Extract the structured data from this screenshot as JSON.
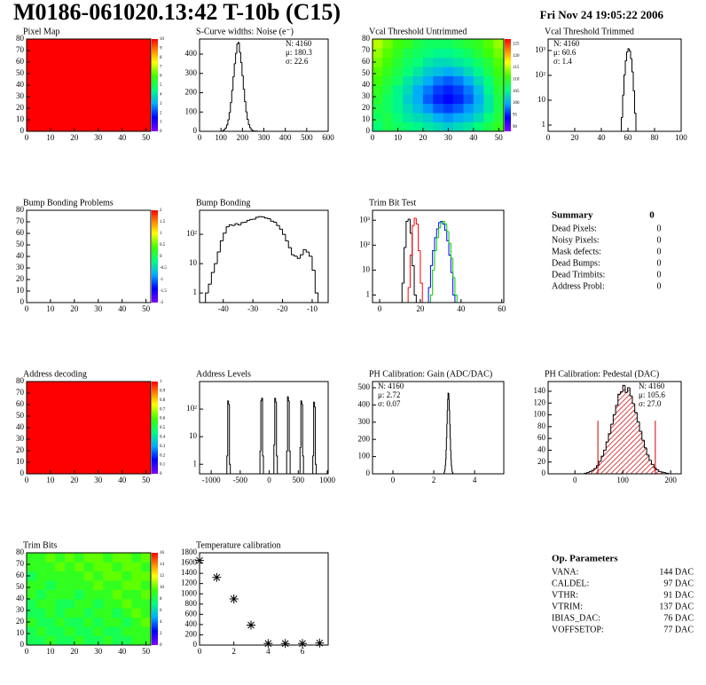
{
  "header": {
    "title": "M0186-061020.13:42 T-10b (C15)",
    "date": "Fri Nov 24 19:05:22 2006"
  },
  "chart_data": [
    {
      "type": "heatmap",
      "title": "Pixel Map",
      "xlim": [
        0,
        52
      ],
      "ylim": [
        0,
        80
      ],
      "xticks": [
        0,
        10,
        20,
        30,
        40,
        50
      ],
      "yticks": [
        0,
        10,
        20,
        30,
        40,
        50,
        60,
        70,
        80
      ],
      "xbins": [
        0,
        52
      ],
      "ybins": [
        0,
        80
      ],
      "z": [
        [
          10
        ]
      ],
      "zlim": [
        0,
        10
      ],
      "zticks": [
        0,
        1,
        2,
        3,
        4,
        5,
        6,
        7,
        8,
        9,
        10
      ]
    },
    {
      "type": "histogram",
      "title": "S-Curve widths: Noise (e⁻)",
      "xlim": [
        0,
        600
      ],
      "ylim": [
        0,
        478
      ],
      "xticks": [
        0,
        100,
        200,
        300,
        400,
        500,
        600
      ],
      "yticks": [
        0,
        100,
        200,
        300,
        400
      ],
      "bins": [
        108,
        114,
        120,
        126,
        132,
        138,
        144,
        150,
        156,
        162,
        168,
        174,
        180,
        186,
        192,
        198,
        204,
        210,
        216,
        222,
        228,
        234,
        240,
        246,
        252,
        258,
        264,
        270
      ],
      "values": [
        4,
        9,
        17,
        33,
        59,
        97,
        149,
        212,
        282,
        350,
        404,
        452,
        460,
        409,
        356,
        289,
        219,
        154,
        101,
        62,
        35,
        19,
        9,
        4,
        2,
        1,
        1
      ],
      "color": "#000000",
      "stats": [
        "N: 4160",
        "μ: 180.3",
        "σ: 22.6"
      ],
      "stats_pos": "right"
    },
    {
      "type": "heatmap",
      "title": "Vcal Threshold Untrimmed",
      "xlim": [
        0,
        52
      ],
      "ylim": [
        0,
        80
      ],
      "xticks": [
        0,
        10,
        20,
        30,
        40,
        50
      ],
      "yticks": [
        0,
        10,
        20,
        30,
        40,
        50,
        60,
        70,
        80
      ],
      "xbins": [
        0,
        4,
        8,
        12,
        16,
        20,
        24,
        28,
        32,
        36,
        40,
        44,
        48,
        52
      ],
      "ybins": [
        0,
        8,
        16,
        24,
        32,
        40,
        48,
        56,
        64,
        72,
        80
      ],
      "z": [
        [
          106,
          108,
          107,
          106,
          105,
          104,
          103,
          102,
          103,
          104,
          106,
          108,
          110
        ],
        [
          107,
          108,
          106,
          104,
          103,
          102,
          100,
          99,
          100,
          101,
          103,
          106,
          109
        ],
        [
          108,
          107,
          105,
          103,
          101,
          99,
          97,
          96,
          97,
          99,
          101,
          104,
          108
        ],
        [
          109,
          107,
          105,
          102,
          100,
          97,
          95,
          94,
          95,
          97,
          100,
          104,
          108
        ],
        [
          110,
          108,
          105,
          103,
          100,
          98,
          96,
          95,
          96,
          98,
          101,
          105,
          109
        ],
        [
          111,
          109,
          107,
          104,
          102,
          100,
          98,
          97,
          98,
          100,
          103,
          106,
          110
        ],
        [
          112,
          110,
          108,
          106,
          104,
          102,
          101,
          100,
          101,
          103,
          105,
          108,
          111
        ],
        [
          113,
          111,
          109,
          107,
          106,
          104,
          103,
          103,
          104,
          105,
          107,
          109,
          112
        ],
        [
          114,
          112,
          110,
          108,
          107,
          106,
          105,
          105,
          106,
          107,
          109,
          111,
          113
        ],
        [
          115,
          113,
          111,
          110,
          108,
          107,
          107,
          107,
          108,
          109,
          110,
          112,
          114
        ]
      ],
      "zlim": [
        88,
        127
      ],
      "zticks": [
        90,
        95,
        100,
        105,
        110,
        115,
        120,
        125
      ]
    },
    {
      "type": "histogram",
      "title": "Vcal Threshold Trimmed",
      "log_y": true,
      "xlim": [
        0,
        100
      ],
      "ylim": [
        0.56,
        2900
      ],
      "xticks": [
        0,
        20,
        40,
        60,
        80,
        100
      ],
      "yticks": [
        1,
        10,
        {
          "value": 100,
          "label": "10²"
        },
        {
          "value": 1000,
          "label": "10³"
        }
      ],
      "bins": [
        55,
        56,
        57,
        58,
        59,
        60,
        61,
        62,
        63,
        64,
        65,
        66
      ],
      "values": [
        2,
        16,
        103,
        385,
        869,
        1182,
        962,
        470,
        139,
        24,
        3
      ],
      "color": "#000000",
      "stats": [
        "N: 4160",
        "μ: 60.6",
        "σ:  1.4"
      ],
      "stats_pos": "left"
    },
    {
      "type": "heatmap",
      "title": "Bump Bonding Problems",
      "xlim": [
        0,
        52
      ],
      "ylim": [
        0,
        80
      ],
      "xticks": [
        0,
        10,
        20,
        30,
        40,
        50
      ],
      "yticks": [
        0,
        10,
        20,
        30,
        40,
        50,
        60,
        70,
        80
      ],
      "zlim": [
        -2,
        2
      ],
      "zticks": [
        -2,
        -1.5,
        -1,
        -0.5,
        0,
        0.5,
        1,
        1.5,
        2
      ]
    },
    {
      "type": "histogram",
      "title": "Bump Bonding",
      "log_y": true,
      "xlim": [
        -48,
        -4.6
      ],
      "ylim": [
        0.47,
        660
      ],
      "xticks": [
        -40,
        -30,
        -20,
        -10
      ],
      "yticks": [
        1,
        10,
        {
          "value": 100,
          "label": "10²"
        }
      ],
      "bins": [
        -46,
        -45,
        -44,
        -43,
        -42,
        -41,
        -40,
        -39,
        -38,
        -37,
        -36,
        -35,
        -34,
        -33,
        -32,
        -31,
        -30,
        -29,
        -28,
        -27,
        -26,
        -25,
        -24,
        -23,
        -22,
        -21,
        -20,
        -19,
        -18,
        -17,
        -16,
        -15,
        -14,
        -13,
        -12,
        -11,
        -10,
        -9,
        -8
      ],
      "values": [
        1,
        2,
        5,
        10,
        25,
        60,
        110,
        180,
        210,
        200,
        230,
        210,
        250,
        260,
        300,
        320,
        330,
        380,
        400,
        390,
        360,
        340,
        280,
        260,
        200,
        150,
        100,
        60,
        35,
        20,
        18,
        15,
        20,
        30,
        25,
        18,
        6,
        1
      ],
      "color": "#000000"
    },
    {
      "type": "histogram",
      "title": "Trim Bit Test",
      "log_y": true,
      "xlim": [
        -3.5,
        61
      ],
      "ylim": [
        0.5,
        2500
      ],
      "xticks": [
        0,
        20,
        40,
        60
      ],
      "yticks": [
        1,
        10,
        {
          "value": 100,
          "label": "10²"
        },
        {
          "value": 1000,
          "label": "10³"
        }
      ],
      "series": [
        {
          "color": "#000000",
          "bins": [
            11,
            12,
            13,
            14,
            15,
            16,
            17,
            18
          ],
          "values": [
            3,
            80,
            900,
            1100,
            300,
            15,
            1
          ]
        },
        {
          "color": "#ff0000",
          "bins": [
            14,
            15,
            16,
            17,
            18,
            19,
            20,
            21
          ],
          "values": [
            2,
            40,
            600,
            1200,
            700,
            60,
            3
          ]
        },
        {
          "color": "#0000ff",
          "bins": [
            24,
            25,
            26,
            27,
            28,
            29,
            30,
            31,
            32,
            33,
            34,
            35,
            36,
            37
          ],
          "values": [
            2,
            15,
            60,
            200,
            450,
            800,
            900,
            700,
            400,
            150,
            40,
            8,
            1
          ]
        },
        {
          "color": "#00cc00",
          "bins": [
            25,
            26,
            27,
            28,
            29,
            30,
            31,
            32,
            33,
            34,
            35,
            36,
            37,
            38
          ],
          "values": [
            1,
            10,
            60,
            200,
            500,
            800,
            900,
            700,
            350,
            120,
            30,
            5,
            1
          ]
        }
      ]
    },
    {
      "type": "heatmap",
      "title": "Address decoding",
      "xlim": [
        0,
        52
      ],
      "ylim": [
        0,
        80
      ],
      "xticks": [
        0,
        10,
        20,
        30,
        40,
        50
      ],
      "yticks": [
        0,
        10,
        20,
        30,
        40,
        50,
        60,
        70,
        80
      ],
      "xbins": [
        0,
        52
      ],
      "ybins": [
        0,
        80
      ],
      "z": [
        [
          1
        ]
      ],
      "zlim": [
        0,
        1
      ],
      "zticks": [
        0,
        0.1,
        0.2,
        0.3,
        0.4,
        0.5,
        0.6,
        0.7,
        0.8,
        0.9,
        1
      ]
    },
    {
      "type": "histogram",
      "title": "Address Levels",
      "log_y": true,
      "xlim": [
        -1200,
        1015
      ],
      "ylim": [
        0.45,
        1000
      ],
      "xticks": [
        -1000,
        -500,
        0,
        500,
        1000
      ],
      "yticks": [
        1,
        10,
        {
          "value": 100,
          "label": "10²"
        }
      ],
      "bins": [
        -730,
        -715,
        -700,
        -685,
        -670,
        -160,
        -145,
        -130,
        -115,
        -100,
        80,
        95,
        110,
        125,
        140,
        300,
        315,
        330,
        345,
        360,
        530,
        545,
        560,
        575,
        590,
        750,
        765,
        780,
        795,
        810
      ],
      "values": [
        2,
        200,
        150,
        1,
        null,
        3,
        200,
        250,
        2,
        null,
        5,
        250,
        180,
        2,
        null,
        3,
        280,
        200,
        3,
        null,
        4,
        200,
        150,
        2,
        null,
        2,
        180,
        120,
        1
      ],
      "color": "#000000"
    },
    {
      "type": "histogram",
      "title": "PH Calibration: Gain (ADC/DAC)",
      "xlim": [
        -1,
        5.43
      ],
      "ylim": [
        0,
        536
      ],
      "xticks": [
        0,
        2,
        4
      ],
      "yticks": [
        0,
        100,
        200,
        300,
        400,
        500
      ],
      "bins": [
        2.5,
        2.52,
        2.54,
        2.56,
        2.58,
        2.6,
        2.62,
        2.64,
        2.66,
        2.68,
        2.7,
        2.72,
        2.74,
        2.76,
        2.78,
        2.8,
        2.82,
        2.84,
        2.86,
        2.88,
        2.9,
        2.92,
        2.94
      ],
      "values": [
        5,
        12,
        25,
        48,
        84,
        137,
        207,
        288,
        368,
        432,
        469,
        469,
        432,
        368,
        288,
        207,
        137,
        84,
        48,
        25,
        12,
        5
      ],
      "color": "#000000",
      "stats": [
        "N: 4160",
        "μ: 2.72",
        "σ: 0.07"
      ],
      "stats_pos": "left"
    },
    {
      "type": "histogram",
      "title": "PH Calibration: Pedestal (DAC)",
      "xlim": [
        -56,
        222
      ],
      "ylim": [
        0,
        156.5
      ],
      "xticks": [
        0,
        100,
        200
      ],
      "yticks": [
        0,
        20,
        40,
        60,
        80,
        100,
        120,
        140
      ],
      "bins": [
        20,
        25,
        30,
        35,
        40,
        45,
        50,
        55,
        60,
        65,
        70,
        75,
        80,
        85,
        90,
        95,
        100,
        105,
        110,
        115,
        120,
        125,
        130,
        135,
        140,
        145,
        150,
        155,
        160,
        165,
        170,
        175,
        180,
        185,
        190,
        195
      ],
      "values": [
        1,
        2,
        4,
        6,
        9,
        14,
        21,
        30,
        40,
        54,
        68,
        84,
        100,
        116,
        135,
        139,
        150,
        138,
        146,
        132,
        119,
        104,
        88,
        72,
        57,
        44,
        32,
        23,
        16,
        10,
        7,
        4,
        3,
        2,
        1
      ],
      "color": "#000000",
      "fill_color": "#d00000",
      "hatch": true,
      "vlines": [
        {
          "x": 48,
          "y": 90
        },
        {
          "x": 168,
          "y": 90
        }
      ],
      "vline_color": "#d00000",
      "stats": [
        "N: 4160",
        "μ: 105.6",
        "σ: 27.0"
      ],
      "stats_colors": [
        "#000000",
        "#d00000",
        "#d00000"
      ],
      "stats_pos": "right"
    },
    {
      "type": "heatmap",
      "title": "Trim Bits",
      "xlim": [
        0,
        52
      ],
      "ylim": [
        0,
        80
      ],
      "xticks": [
        0,
        10,
        20,
        30,
        40,
        50
      ],
      "yticks": [
        0,
        10,
        20,
        30,
        40,
        50,
        60,
        70,
        80
      ],
      "xbins": [
        0,
        4,
        8,
        12,
        16,
        20,
        24,
        28,
        32,
        36,
        40,
        44,
        48,
        52
      ],
      "ybins": [
        0,
        8,
        16,
        24,
        32,
        40,
        48,
        56,
        64,
        72,
        80
      ],
      "z": [
        [
          8,
          8,
          9,
          8,
          8,
          9,
          8,
          8,
          9,
          8,
          8,
          9,
          9
        ],
        [
          8,
          9,
          8,
          8,
          9,
          8,
          8,
          9,
          8,
          8,
          9,
          9,
          9
        ],
        [
          9,
          8,
          8,
          9,
          8,
          8,
          9,
          8,
          9,
          9,
          8,
          9,
          10
        ],
        [
          8,
          8,
          9,
          8,
          9,
          9,
          8,
          9,
          9,
          8,
          9,
          10,
          9
        ],
        [
          8,
          9,
          9,
          8,
          8,
          9,
          9,
          8,
          9,
          9,
          10,
          9,
          9
        ],
        [
          9,
          8,
          9,
          9,
          9,
          8,
          9,
          9,
          9,
          10,
          9,
          9,
          10
        ],
        [
          9,
          9,
          8,
          9,
          9,
          9,
          9,
          10,
          9,
          9,
          10,
          10,
          9
        ],
        [
          8,
          9,
          9,
          9,
          9,
          9,
          10,
          9,
          10,
          10,
          9,
          10,
          10
        ],
        [
          9,
          9,
          9,
          10,
          9,
          10,
          9,
          10,
          10,
          9,
          10,
          10,
          9
        ],
        [
          9,
          9,
          10,
          9,
          10,
          9,
          10,
          10,
          9,
          10,
          10,
          9,
          10
        ]
      ],
      "zlim": [
        0,
        16
      ],
      "zticks": [
        0,
        2,
        4,
        6,
        8,
        10,
        12,
        14,
        16
      ]
    },
    {
      "type": "scatter",
      "title": "Temperature calibration",
      "xlim": [
        0,
        7.5
      ],
      "ylim": [
        0,
        1800
      ],
      "xticks": [
        0,
        2,
        4,
        6
      ],
      "yticks": [
        0,
        200,
        400,
        600,
        800,
        1000,
        1200,
        1400,
        1600,
        1800
      ],
      "x": [
        0,
        1,
        2,
        3,
        4,
        5,
        6,
        7
      ],
      "values": [
        1650,
        1320,
        900,
        390,
        30,
        30,
        30,
        40
      ],
      "color": "#000000"
    }
  ],
  "summary": {
    "title": "Summary",
    "total": 0,
    "rows": [
      {
        "label": "Dead Pixels:",
        "value": 0
      },
      {
        "label": "Noisy Pixels:",
        "value": 0
      },
      {
        "label": "Mask defects:",
        "value": 0
      },
      {
        "label": "Dead Bumps:",
        "value": 0
      },
      {
        "label": "Dead Trimbits:",
        "value": 0
      },
      {
        "label": "Address Probl:",
        "value": 0
      }
    ]
  },
  "op_parameters": {
    "title": "Op. Parameters",
    "rows": [
      {
        "label": "VANA:",
        "value": "144 DAC"
      },
      {
        "label": "CALDEL:",
        "value": "97 DAC"
      },
      {
        "label": "VTHR:",
        "value": "91 DAC"
      },
      {
        "label": "VTRIM:",
        "value": "137 DAC"
      },
      {
        "label": "IBIAS_DAC:",
        "value": "76 DAC"
      },
      {
        "label": "VOFFSETOP:",
        "value": "77 DAC"
      }
    ]
  }
}
